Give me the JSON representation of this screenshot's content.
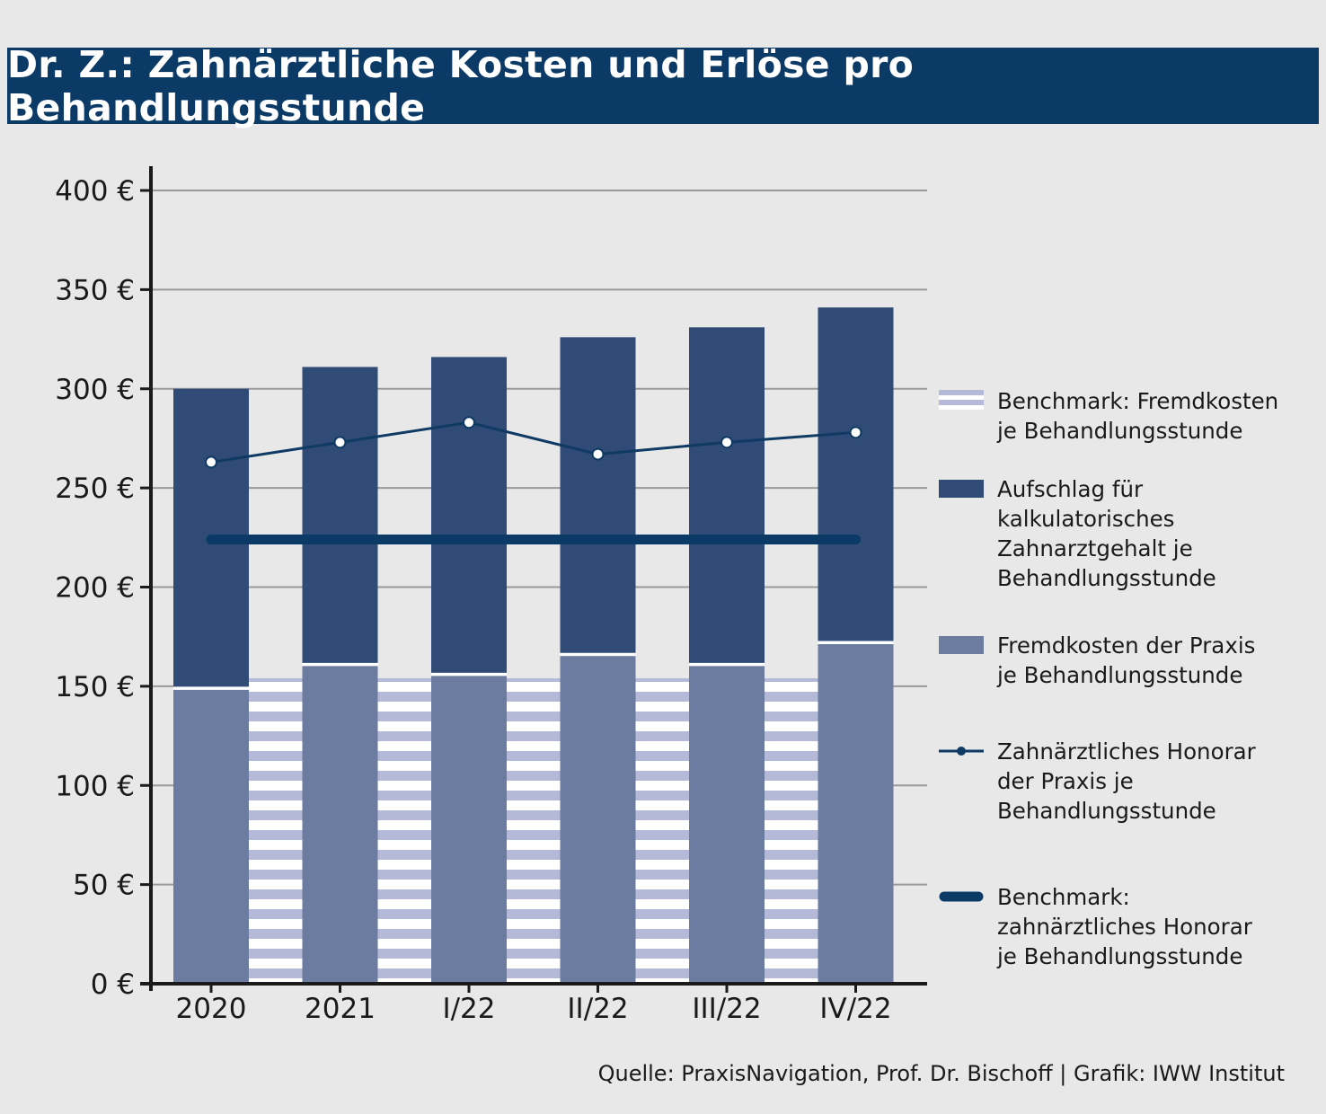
{
  "title": "Dr. Z.: Zahnärztliche Kosten und Erlöse pro Behandlungsstunde",
  "source": "Quelle: PraxisNavigation, Prof. Dr. Bischoff | Grafik: IWW Institut",
  "colors": {
    "title_bg": "#0b3a66",
    "fremdkosten": "#6b7ca0",
    "aufschlag": "#2f4b76",
    "benchmark_fremdkosten": "#b3b9d6",
    "honorar_line": "#0f3a64",
    "benchmark_honorar": "#0b3a66"
  },
  "chart_data": {
    "type": "bar",
    "stacked": true,
    "categories": [
      "2020",
      "2021",
      "I/22",
      "II/22",
      "III/22",
      "IV/22"
    ],
    "y_tick_labels": [
      "0 €",
      "50 €",
      "100 €",
      "150 €",
      "200 €",
      "250 €",
      "300 €",
      "350 €",
      "400 €"
    ],
    "ylim": [
      0,
      400
    ],
    "grid": true,
    "legend_position": "right",
    "series": [
      {
        "name": "Fremdkosten der Praxis je Behandlungsstunde",
        "kind": "bar-bottom",
        "values": [
          149,
          161,
          156,
          166,
          161,
          172
        ]
      },
      {
        "name": "Aufschlag für kalkulatorisches Zahnarztgehalt je Behandlungsstunde",
        "kind": "bar-top",
        "values": [
          151,
          150,
          160,
          160,
          170,
          169
        ]
      },
      {
        "name": "Zahnärztliches Honorar der Praxis je Behandlungsstunde",
        "kind": "line",
        "values": [
          263,
          273,
          283,
          267,
          273,
          278
        ]
      },
      {
        "name": "Benchmark: Fremdkosten je Behandlungsstunde",
        "kind": "striped-gap",
        "values": [
          154,
          154,
          154,
          154,
          154
        ]
      },
      {
        "name": "Benchmark: zahnärztliches Honorar je Behandlungsstunde",
        "kind": "thick-line",
        "values": [
          224,
          224,
          224,
          224,
          224,
          224
        ]
      }
    ]
  },
  "legend": [
    {
      "label": "Benchmark: Fremdkosten\nje Behandlungsstunde",
      "icon": "striped-swatch"
    },
    {
      "label": "Aufschlag für\nkalkulatorisches\nZahnarztgehalt je\nBehandlungsstunde",
      "icon": "dark-swatch"
    },
    {
      "label": "Fremdkosten der Praxis\nje Behandlungsstunde",
      "icon": "light-swatch"
    },
    {
      "label": "Zahnärztliches Honorar\nder Praxis je\nBehandlungsstunde",
      "icon": "line-dot-swatch"
    },
    {
      "label": "Benchmark:\nzahnärztliches Honorar\nje Behandlungsstunde",
      "icon": "thick-line-swatch"
    }
  ]
}
